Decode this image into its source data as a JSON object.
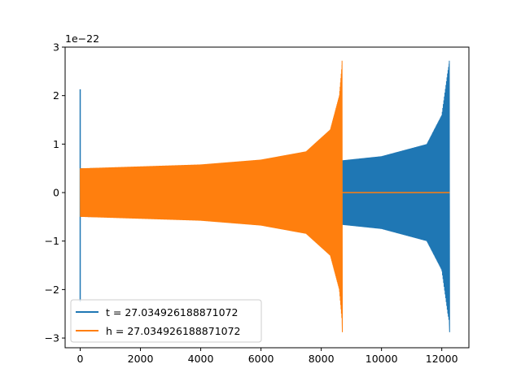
{
  "chart_data": {
    "type": "line",
    "title": "",
    "xlabel": "",
    "ylabel": "",
    "y_scale_note": "1e−22",
    "xlim": [
      -500,
      12900
    ],
    "ylim": [
      -3.2,
      3.0
    ],
    "xticks": [
      0,
      2000,
      4000,
      6000,
      8000,
      10000,
      12000
    ],
    "xtick_labels": [
      "0",
      "2000",
      "4000",
      "6000",
      "8000",
      "10000",
      "12000"
    ],
    "yticks": [
      3,
      2,
      1,
      0,
      -1,
      -2,
      -3
    ],
    "ytick_labels": [
      "3",
      "2",
      "1",
      "0",
      "−1",
      "−2",
      "−3"
    ],
    "grid": false,
    "legend_position": "lower-left",
    "series": [
      {
        "name": "t = 27.034926188871072",
        "color": "#1f77b4",
        "signal": {
          "spike_at": 0,
          "spike_range": [
            -2.25,
            2.13
          ],
          "chirp_start": 0,
          "chirp_end": 12260,
          "envelope": [
            [
              0,
              0.5
            ],
            [
              4000,
              0.55
            ],
            [
              8000,
              0.62
            ],
            [
              10000,
              0.75
            ],
            [
              11500,
              1.0
            ],
            [
              12000,
              1.6
            ],
            [
              12200,
              2.5
            ],
            [
              12260,
              2.72
            ]
          ],
          "min_at_end": -2.88
        }
      },
      {
        "name": "h = 27.034926188871072",
        "color": "#ff7f0e",
        "signal": {
          "chirp_start": 0,
          "chirp_end": 8700,
          "envelope": [
            [
              0,
              0.5
            ],
            [
              4000,
              0.58
            ],
            [
              6000,
              0.68
            ],
            [
              7500,
              0.85
            ],
            [
              8300,
              1.3
            ],
            [
              8600,
              2.0
            ],
            [
              8700,
              2.72
            ]
          ],
          "min_at_end": -2.88,
          "flat_after_to": 12260
        }
      }
    ]
  }
}
